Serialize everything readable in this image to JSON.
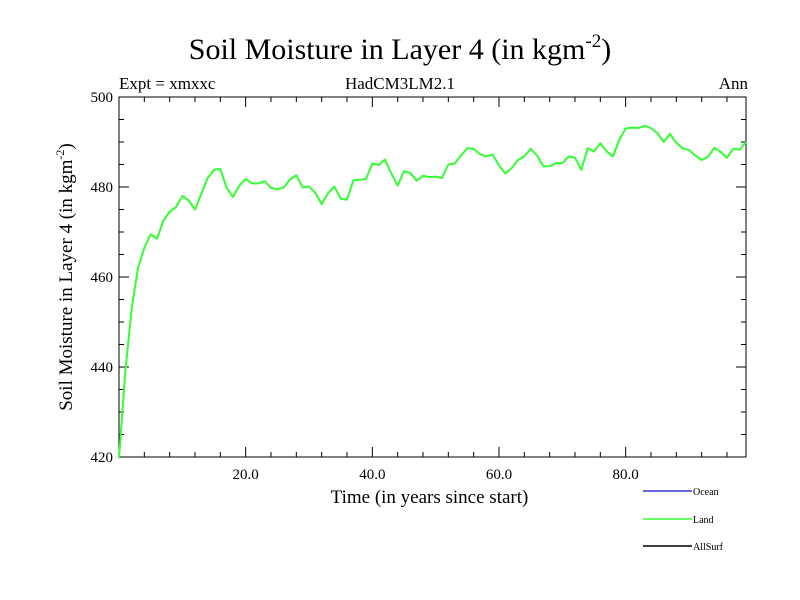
{
  "title": {
    "main": "Soil Moisture in Layer 4 (in kgm",
    "sup": "-2",
    "close": ")"
  },
  "left_label": "Expt = xmxxc",
  "center_label": "HadCM3LM2.1",
  "right_label": "Ann",
  "chart_data": {
    "type": "line",
    "title": "Soil Moisture in Layer 4 (in kgm-2)",
    "xlabel": "Time (in years since start)",
    "ylabel": {
      "main": "Soil Moisture in Layer 4 (in kgm",
      "sup": "-2",
      "close": ")"
    },
    "xlim": [
      0,
      99
    ],
    "ylim": [
      420,
      500
    ],
    "x_ticks": [
      20,
      40,
      60,
      80
    ],
    "x_tick_labels": [
      "20.0",
      "40.0",
      "60.0",
      "80.0"
    ],
    "y_ticks": [
      420,
      440,
      460,
      480,
      500
    ],
    "y_tick_labels": [
      "420",
      "440",
      "460",
      "480",
      "500"
    ],
    "grid": false,
    "legend_position": "bottom-right, below the plot",
    "legend": [
      {
        "name": "Ocean",
        "color": "#3333cc"
      },
      {
        "name": "Land",
        "color": "#33ff33"
      },
      {
        "name": "AllSurf",
        "color": "#000000"
      }
    ],
    "series": [
      {
        "name": "Land",
        "color": "#33ff33",
        "x": [
          0,
          1,
          2,
          3,
          4,
          5,
          6,
          7,
          8,
          9,
          10,
          11,
          12,
          13,
          14,
          15,
          16,
          17,
          18,
          19,
          20,
          21,
          22,
          23,
          24,
          25,
          26,
          27,
          28,
          29,
          30,
          31,
          32,
          33,
          34,
          35,
          36,
          37,
          38,
          39,
          40,
          41,
          42,
          43,
          44,
          45,
          46,
          47,
          48,
          49,
          50,
          51,
          52,
          53,
          54,
          55,
          56,
          57,
          58,
          59,
          60,
          61,
          62,
          63,
          64,
          65,
          66,
          67,
          68,
          69,
          70,
          71,
          72,
          73,
          74,
          75,
          76,
          77,
          78,
          79,
          80,
          81,
          82,
          83,
          84,
          85,
          86,
          87,
          88,
          89,
          90,
          91,
          92,
          93,
          94,
          95,
          96,
          97,
          98,
          99
        ],
        "values": [
          419.7,
          439.0,
          453.0,
          462.0,
          466.5,
          469.5,
          468.5,
          472.5,
          474.5,
          475.5,
          478.0,
          477.0,
          475.0,
          478.5,
          482.0,
          483.8,
          484.0,
          479.8,
          477.8,
          480.3,
          481.8,
          480.8,
          480.8,
          481.3,
          479.8,
          479.5,
          479.9,
          481.7,
          482.6,
          479.9,
          480.1,
          478.7,
          476.2,
          478.6,
          480.1,
          477.4,
          477.2,
          481.5,
          481.6,
          481.8,
          485.2,
          484.9,
          486.1,
          483.0,
          480.3,
          483.5,
          483.1,
          481.4,
          482.5,
          482.2,
          482.3,
          482.0,
          485.0,
          485.2,
          487.0,
          488.6,
          488.5,
          487.3,
          486.8,
          487.2,
          484.8,
          483.0,
          484.2,
          486.0,
          486.8,
          488.5,
          487.0,
          484.6,
          484.6,
          485.3,
          485.3,
          486.8,
          486.5,
          483.8,
          488.6,
          487.9,
          489.7,
          487.9,
          486.8,
          490.5,
          493.0,
          493.2,
          493.1,
          493.6,
          493.1,
          492.0,
          490.0,
          491.8,
          489.8,
          488.6,
          488.2,
          487.0,
          486.0,
          486.7,
          488.7,
          487.8,
          486.5,
          488.5,
          488.3,
          490.0
        ]
      }
    ]
  }
}
